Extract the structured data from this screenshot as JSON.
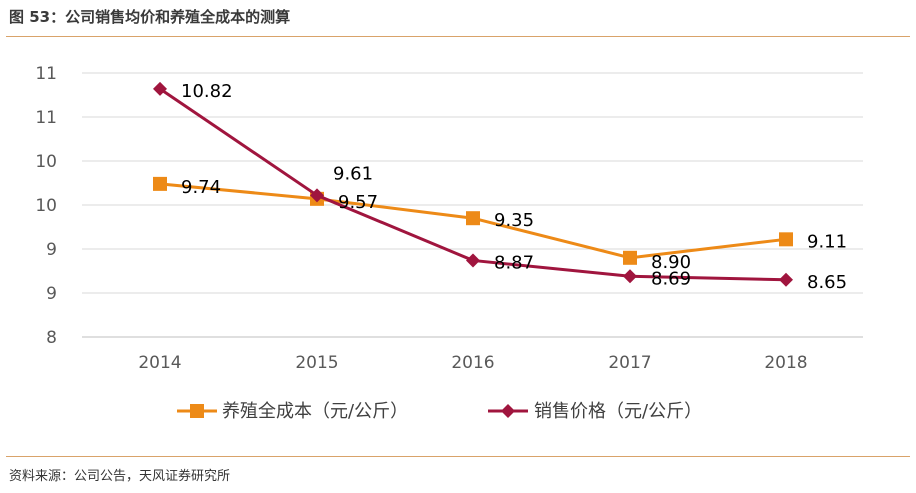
{
  "figure": {
    "title": "图 53：公司销售均价和养殖全成本的测算",
    "source": "资料来源：公司公告，天风证券研究所"
  },
  "chart_data": {
    "type": "line",
    "title": "",
    "xlabel": "",
    "ylabel": "",
    "categories": [
      "2014",
      "2015",
      "2016",
      "2017",
      "2018"
    ],
    "ylim": [
      8,
      11
    ],
    "y_tick_labels": [
      "8",
      "9",
      "9",
      "10",
      "10",
      "11",
      "11"
    ],
    "grid": true,
    "legend_position": "bottom",
    "series": [
      {
        "name": "养殖全成本（元/公斤）",
        "color": "#ED8A17",
        "marker": "square",
        "values": [
          9.74,
          9.57,
          9.35,
          8.9,
          9.11
        ],
        "labels": [
          "9.74",
          "9.57",
          "9.35",
          "8.90",
          "9.11"
        ]
      },
      {
        "name": "销售价格（元/公斤）",
        "color": "#A0153E",
        "marker": "diamond",
        "values": [
          10.82,
          9.61,
          8.87,
          8.69,
          8.65
        ],
        "labels": [
          "10.82",
          "9.61",
          "8.87",
          "8.69",
          "8.65"
        ]
      }
    ]
  }
}
